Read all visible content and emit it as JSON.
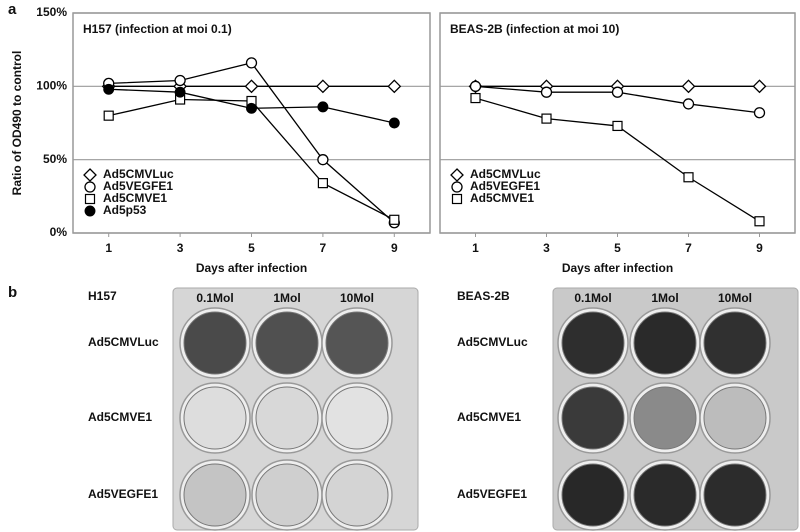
{
  "panel_labels": [
    "a",
    "b"
  ],
  "chart_data": [
    {
      "type": "line",
      "title": "H157 (infection at moi 0.1)",
      "xlabel": "Days after infection",
      "ylabel": "Ratio of OD490 to control",
      "x": [
        1,
        3,
        5,
        7,
        9
      ],
      "xlim": [
        0,
        10
      ],
      "xticks": [
        1,
        3,
        5,
        7,
        9
      ],
      "ylim": [
        0,
        150
      ],
      "yticks": [
        {
          "value": 0,
          "label": "0%"
        },
        {
          "value": 50,
          "label": "50%"
        },
        {
          "value": 100,
          "label": "100%"
        },
        {
          "value": 150,
          "label": "150%"
        }
      ],
      "grid": true,
      "legend": "lower left",
      "series": [
        {
          "name": "Ad5CMVLuc",
          "color": "#000000",
          "marker": "diamond",
          "values": [
            100,
            100,
            100,
            100,
            100
          ]
        },
        {
          "name": "Ad5VEGFE1",
          "color": "#000000",
          "marker": "circle",
          "values": [
            102,
            104,
            116,
            50,
            7
          ]
        },
        {
          "name": "Ad5CMVE1",
          "color": "#000000",
          "marker": "square",
          "values": [
            80,
            91,
            90,
            34,
            9
          ]
        },
        {
          "name": "Ad5p53",
          "color": "#000000",
          "marker": "dot",
          "values": [
            98,
            96,
            85,
            86,
            75
          ]
        }
      ]
    },
    {
      "type": "line",
      "title": "BEAS-2B (infection at moi 10)",
      "xlabel": "Days after infection",
      "x": [
        1,
        3,
        5,
        7,
        9
      ],
      "xlim": [
        0,
        10
      ],
      "xticks": [
        1,
        3,
        5,
        7,
        9
      ],
      "ylim": [
        0,
        150
      ],
      "yticks": [
        0,
        50,
        100,
        150
      ],
      "show_ytick_labels": false,
      "grid": true,
      "legend": "lower left",
      "series": [
        {
          "name": "Ad5CMVLuc",
          "color": "#000000",
          "marker": "diamond",
          "values": [
            100,
            100,
            100,
            100,
            100
          ]
        },
        {
          "name": "Ad5VEGFE1",
          "color": "#000000",
          "marker": "circle",
          "values": [
            100,
            96,
            96,
            88,
            82
          ]
        },
        {
          "name": "Ad5CMVE1",
          "color": "#000000",
          "marker": "square",
          "values": [
            92,
            78,
            73,
            38,
            8
          ]
        }
      ]
    }
  ],
  "plates": [
    {
      "title": "H157",
      "columns": [
        "0.1Mol",
        "1Mol",
        "10Mol"
      ],
      "rows": [
        "Ad5CMVLuc",
        "Ad5CMVE1",
        "Ad5VEGFE1"
      ]
    },
    {
      "title": "BEAS-2B",
      "columns": [
        "0.1Mol",
        "1Mol",
        "10Mol"
      ],
      "rows": [
        "Ad5CMVLuc",
        "Ad5CMVE1",
        "Ad5VEGFE1"
      ]
    }
  ]
}
